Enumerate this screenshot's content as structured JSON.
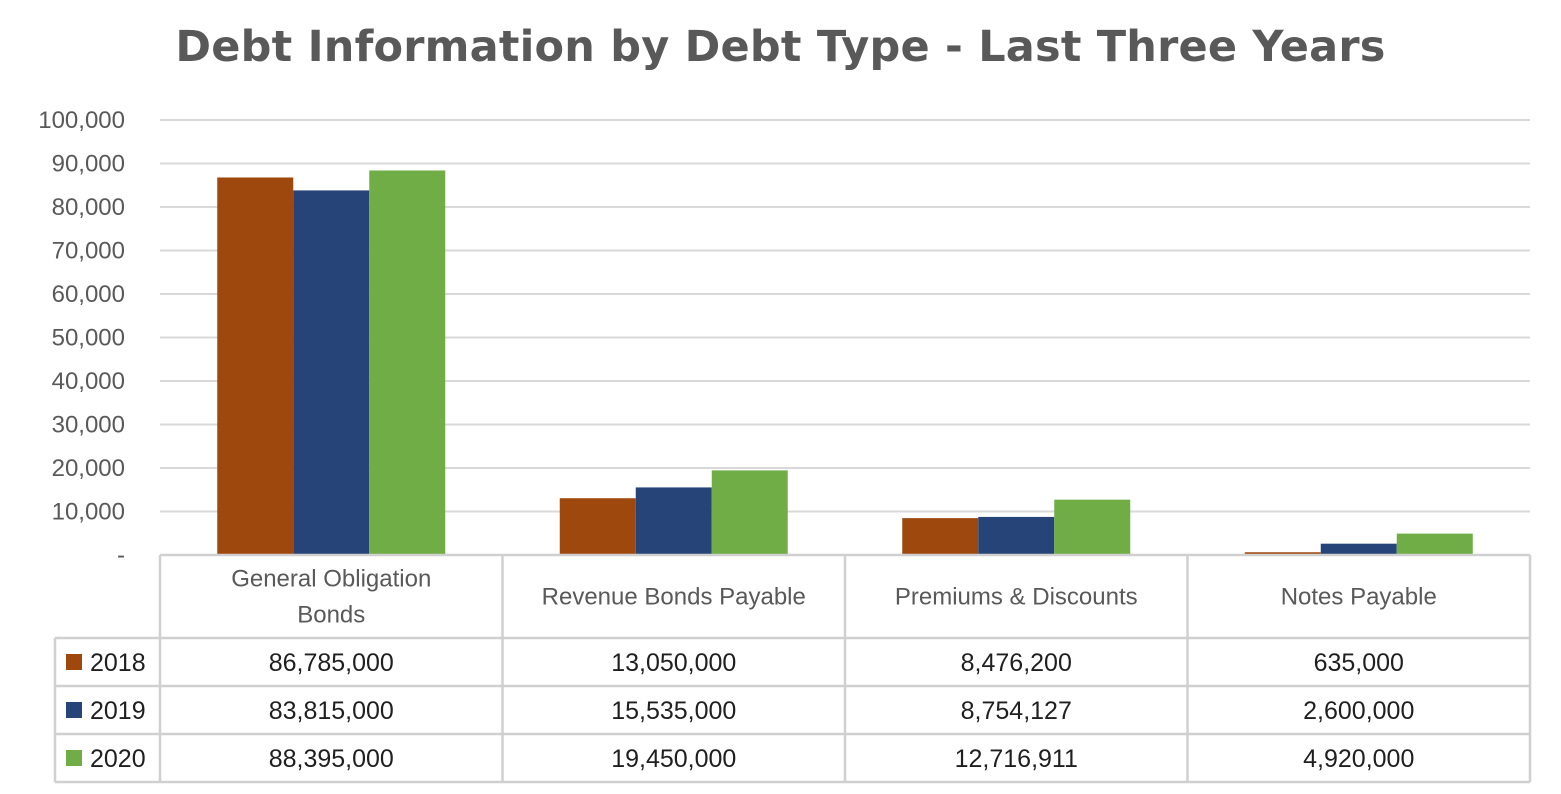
{
  "chart_data": {
    "type": "bar",
    "title": "Debt Information by Debt Type - Last Three Years",
    "categories": [
      "General Obligation Bonds",
      "Revenue Bonds Payable",
      "Premiums & Discounts",
      "Notes Payable"
    ],
    "category_lines": [
      [
        "General Obligation",
        "Bonds"
      ],
      [
        "Revenue Bonds Payable"
      ],
      [
        "Premiums & Discounts"
      ],
      [
        "Notes Payable"
      ]
    ],
    "series": [
      {
        "name": "2018",
        "color": "#9E480E",
        "values": [
          86785000,
          13050000,
          8476200,
          635000
        ],
        "labels": [
          "86,785,000",
          "13,050,000",
          "8,476,200",
          "635,000"
        ]
      },
      {
        "name": "2019",
        "color": "#264478",
        "values": [
          83815000,
          15535000,
          8754127,
          2600000
        ],
        "labels": [
          "83,815,000",
          "15,535,000",
          "8,754,127",
          "2,600,000"
        ]
      },
      {
        "name": "2020",
        "color": "#70AD47",
        "values": [
          88395000,
          19450000,
          12716911,
          4920000
        ],
        "labels": [
          "88,395,000",
          "19,450,000",
          "12,716,911",
          "4,920,000"
        ]
      }
    ],
    "ylim": [
      0,
      100000
    ],
    "y_scale_divisor": 1000,
    "yticks": [
      "-",
      "10,000",
      "20,000",
      "30,000",
      "40,000",
      "50,000",
      "60,000",
      "70,000",
      "80,000",
      "90,000",
      "100,000"
    ],
    "grid": true,
    "legend": "data-table"
  }
}
